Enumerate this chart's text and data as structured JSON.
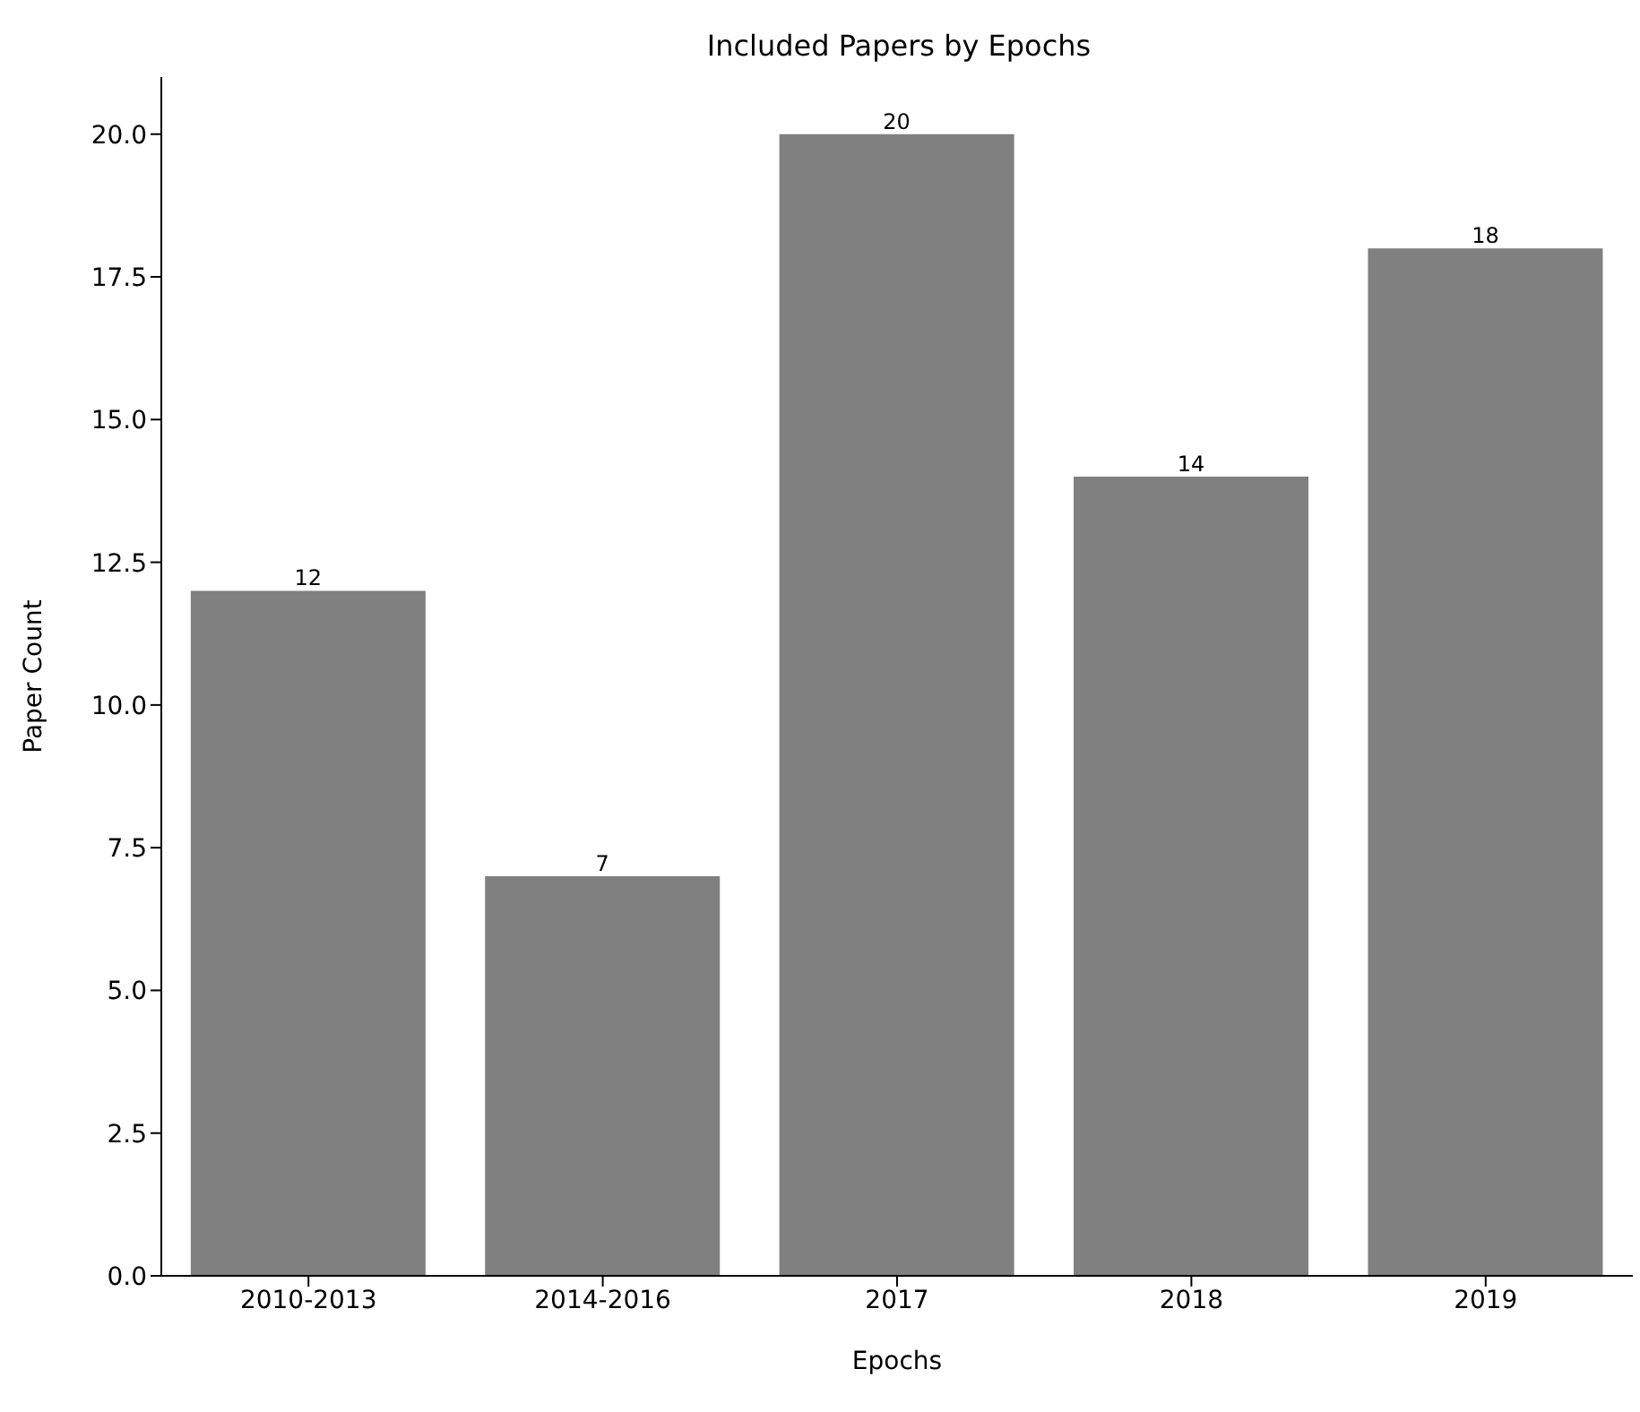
{
  "chart_data": {
    "type": "bar",
    "title": "Included Papers by Epochs",
    "xlabel": "Epochs",
    "ylabel": "Paper Count",
    "categories": [
      "2010-2013",
      "2014-2016",
      "2017",
      "2018",
      "2019"
    ],
    "values": [
      12,
      7,
      20,
      14,
      18
    ],
    "color": "#808080",
    "ylim": [
      0,
      21
    ],
    "yticks": [
      {
        "value": 0,
        "label": "0.0"
      },
      {
        "value": 2.5,
        "label": "2.5"
      },
      {
        "value": 5,
        "label": "5.0"
      },
      {
        "value": 7.5,
        "label": "7.5"
      },
      {
        "value": 10,
        "label": "10.0"
      },
      {
        "value": 12.5,
        "label": "12.5"
      },
      {
        "value": 15,
        "label": "15.0"
      },
      {
        "value": 17.5,
        "label": "17.5"
      },
      {
        "value": 20,
        "label": "20.0"
      }
    ],
    "data_labels": true,
    "grid": false,
    "legend": false
  }
}
